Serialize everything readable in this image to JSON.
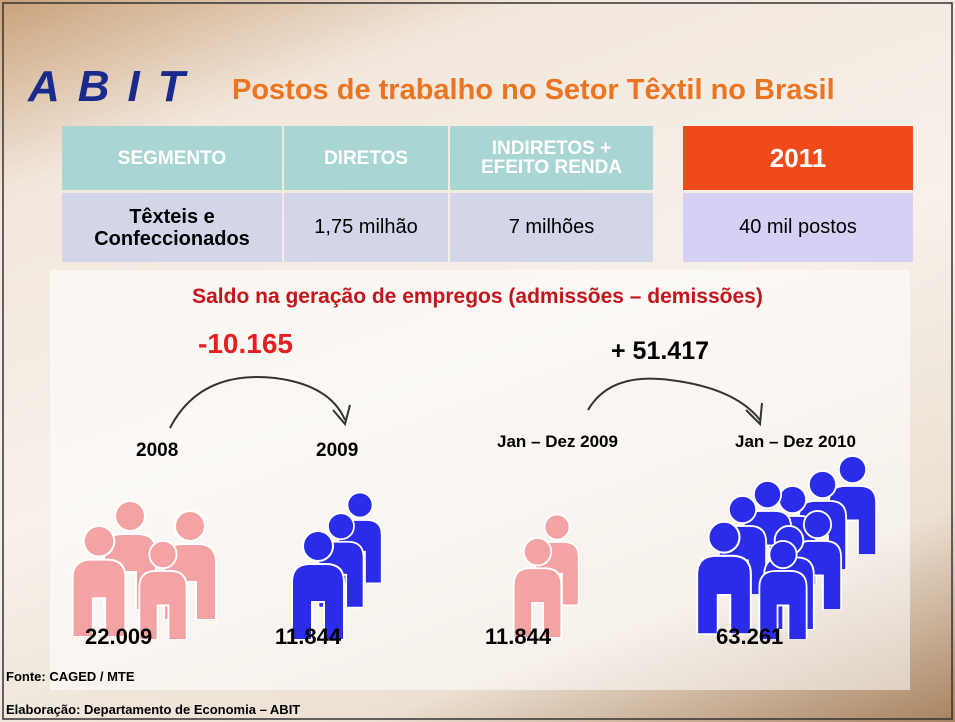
{
  "header": {
    "logo": "ABIT",
    "title": "Postos de trabalho no Setor Têxtil no Brasil"
  },
  "table": {
    "columns": [
      "SEGMENTO",
      "DIRETOS",
      "INDIRETOS + EFEITO RENDA",
      "2011"
    ],
    "rows": [
      [
        "Têxteis e Confeccionados",
        "1,75 milhão",
        "7 milhões",
        "40 mil postos"
      ]
    ]
  },
  "section": {
    "title": "Saldo na geração de empregos (admissões – demissões)",
    "comparisons": [
      {
        "change": "-10.165",
        "from": {
          "label": "2008",
          "value": "22.009"
        },
        "to": {
          "label": "2009",
          "value": "11.844"
        }
      },
      {
        "change": "+ 51.417",
        "from": {
          "label": "Jan – Dez 2009",
          "value": "11.844"
        },
        "to": {
          "label": "Jan – Dez 2010",
          "value": "63.261"
        }
      }
    ]
  },
  "footer": {
    "source": "Fonte: CAGED / MTE",
    "credit": "Elaboração: Departamento de Economia – ABIT"
  }
}
